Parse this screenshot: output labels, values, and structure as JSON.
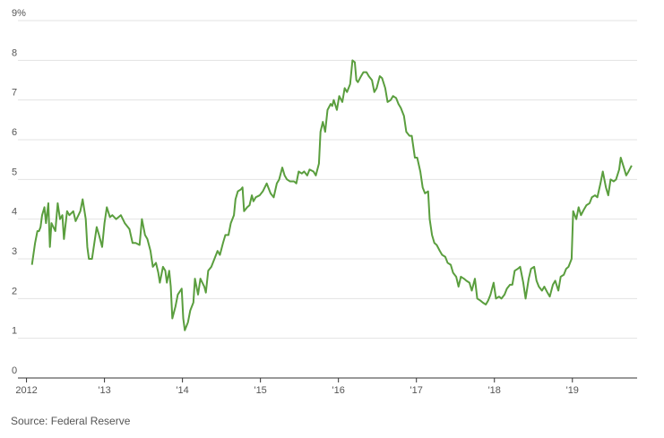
{
  "chart_data": {
    "type": "line",
    "source": "Source: Federal Reserve",
    "x": [
      2012.07,
      2012.11,
      2012.14,
      2012.16,
      2012.18,
      2012.2,
      2012.23,
      2012.25,
      2012.28,
      2012.3,
      2012.32,
      2012.37,
      2012.4,
      2012.43,
      2012.46,
      2012.48,
      2012.52,
      2012.55,
      2012.6,
      2012.63,
      2012.69,
      2012.72,
      2012.76,
      2012.78,
      2012.8,
      2012.84,
      2012.87,
      2012.9,
      2012.93,
      2012.97,
      2013.0,
      2013.03,
      2013.07,
      2013.1,
      2013.15,
      2013.21,
      2013.26,
      2013.32,
      2013.36,
      2013.4,
      2013.45,
      2013.48,
      2013.52,
      2013.55,
      2013.59,
      2013.62,
      2013.66,
      2013.69,
      2013.71,
      2013.75,
      2013.78,
      2013.8,
      2013.83,
      2013.85,
      2013.87,
      2013.91,
      2013.94,
      2013.99,
      2014.01,
      2014.03,
      2014.07,
      2014.1,
      2014.14,
      2014.16,
      2014.2,
      2014.23,
      2014.28,
      2014.3,
      2014.33,
      2014.37,
      2014.41,
      2014.45,
      2014.48,
      2014.52,
      2014.55,
      2014.59,
      2014.62,
      2014.66,
      2014.68,
      2014.71,
      2014.75,
      2014.77,
      2014.79,
      2014.83,
      2014.86,
      2014.89,
      2014.91,
      2014.94,
      2014.99,
      2015.03,
      2015.08,
      2015.13,
      2015.17,
      2015.21,
      2015.24,
      2015.28,
      2015.31,
      2015.34,
      2015.38,
      2015.43,
      2015.46,
      2015.49,
      2015.53,
      2015.56,
      2015.6,
      2015.63,
      2015.68,
      2015.71,
      2015.75,
      2015.77,
      2015.8,
      2015.83,
      2015.86,
      2015.9,
      2015.92,
      2015.94,
      2015.98,
      2016.01,
      2016.05,
      2016.08,
      2016.11,
      2016.15,
      2016.18,
      2016.21,
      2016.23,
      2016.25,
      2016.29,
      2016.32,
      2016.36,
      2016.39,
      2016.43,
      2016.46,
      2016.49,
      2016.53,
      2016.56,
      2016.6,
      2016.63,
      2016.67,
      2016.7,
      2016.74,
      2016.77,
      2016.8,
      2016.84,
      2016.87,
      2016.91,
      2016.94,
      2016.98,
      2017.01,
      2017.05,
      2017.08,
      2017.11,
      2017.15,
      2017.17,
      2017.2,
      2017.23,
      2017.26,
      2017.3,
      2017.33,
      2017.37,
      2017.4,
      2017.44,
      2017.47,
      2017.51,
      2017.54,
      2017.57,
      2017.61,
      2017.64,
      2017.68,
      2017.71,
      2017.75,
      2017.78,
      2017.82,
      2017.85,
      2017.89,
      2017.92,
      2017.95,
      2017.99,
      2018.02,
      2018.06,
      2018.09,
      2018.13,
      2018.16,
      2018.2,
      2018.23,
      2018.26,
      2018.3,
      2018.33,
      2018.37,
      2018.4,
      2018.44,
      2018.47,
      2018.51,
      2018.54,
      2018.57,
      2018.61,
      2018.64,
      2018.68,
      2018.71,
      2018.75,
      2018.78,
      2018.82,
      2018.85,
      2018.89,
      2018.92,
      2018.95,
      2018.99,
      2019.01,
      2019.05,
      2019.08,
      2019.11,
      2019.15,
      2019.18,
      2019.22,
      2019.25,
      2019.29,
      2019.32,
      2019.36,
      2019.39,
      2019.43,
      2019.46,
      2019.49,
      2019.53,
      2019.56,
      2019.6,
      2019.62,
      2019.66,
      2019.69,
      2019.72,
      2019.76
    ],
    "series": [
      {
        "color": "#5a9e3e",
        "values": [
          2.85,
          3.4,
          3.7,
          3.7,
          3.8,
          4.1,
          4.3,
          3.9,
          4.4,
          3.3,
          3.9,
          3.7,
          4.4,
          4.0,
          4.1,
          3.5,
          4.2,
          4.1,
          4.2,
          3.95,
          4.2,
          4.5,
          4.0,
          3.3,
          3.0,
          3.0,
          3.4,
          3.8,
          3.6,
          3.3,
          3.9,
          4.3,
          4.05,
          4.1,
          4.0,
          4.1,
          3.9,
          3.75,
          3.4,
          3.4,
          3.35,
          4.0,
          3.6,
          3.5,
          3.2,
          2.8,
          2.9,
          2.65,
          2.4,
          2.8,
          2.7,
          2.4,
          2.7,
          2.3,
          1.5,
          1.8,
          2.1,
          2.25,
          1.5,
          1.2,
          1.4,
          1.7,
          1.9,
          2.5,
          2.1,
          2.5,
          2.3,
          2.15,
          2.7,
          2.8,
          3.0,
          3.2,
          3.1,
          3.4,
          3.6,
          3.6,
          3.9,
          4.1,
          4.5,
          4.7,
          4.75,
          4.8,
          4.2,
          4.3,
          4.35,
          4.6,
          4.45,
          4.55,
          4.6,
          4.7,
          4.9,
          4.65,
          4.55,
          4.9,
          5.0,
          5.3,
          5.1,
          5.0,
          4.95,
          4.95,
          4.9,
          5.2,
          5.15,
          5.2,
          5.1,
          5.25,
          5.2,
          5.1,
          5.4,
          6.2,
          6.45,
          6.2,
          6.75,
          6.9,
          6.85,
          7.0,
          6.75,
          7.1,
          6.95,
          7.3,
          7.2,
          7.4,
          8.0,
          7.95,
          7.5,
          7.45,
          7.6,
          7.7,
          7.7,
          7.6,
          7.5,
          7.2,
          7.3,
          7.6,
          7.55,
          7.3,
          6.95,
          7.0,
          7.1,
          7.05,
          6.9,
          6.8,
          6.6,
          6.2,
          6.1,
          6.1,
          5.55,
          5.55,
          5.2,
          4.8,
          4.65,
          4.7,
          4.0,
          3.6,
          3.4,
          3.35,
          3.2,
          3.1,
          3.05,
          2.9,
          2.85,
          2.65,
          2.55,
          2.3,
          2.55,
          2.5,
          2.45,
          2.4,
          2.2,
          2.5,
          2.0,
          1.95,
          1.9,
          1.85,
          1.95,
          2.1,
          2.4,
          2.0,
          2.05,
          2.0,
          2.1,
          2.25,
          2.35,
          2.35,
          2.7,
          2.75,
          2.8,
          2.4,
          2.0,
          2.5,
          2.75,
          2.8,
          2.45,
          2.3,
          2.2,
          2.3,
          2.15,
          2.05,
          2.35,
          2.45,
          2.2,
          2.55,
          2.6,
          2.75,
          2.8,
          3.0,
          4.2,
          4.0,
          4.3,
          4.1,
          4.25,
          4.35,
          4.4,
          4.55,
          4.6,
          4.55,
          4.9,
          5.2,
          4.8,
          4.6,
          5.0,
          4.95,
          5.0,
          5.25,
          5.55,
          5.3,
          5.1,
          5.2,
          5.35
        ]
      }
    ],
    "xlim": [
      2011.89,
      2019.83
    ],
    "xticks": [
      2012,
      {
        "value": 2013,
        "label": "'13"
      },
      {
        "value": 2014,
        "label": "'14"
      },
      {
        "value": 2015,
        "label": "'15"
      },
      {
        "value": 2016,
        "label": "'16"
      },
      {
        "value": 2017,
        "label": "'17"
      },
      {
        "value": 2018,
        "label": "'18"
      },
      {
        "value": 2019,
        "label": "'19"
      }
    ],
    "ylim": [
      0,
      9
    ],
    "yticks": [
      0,
      1,
      2,
      3,
      4,
      5,
      6,
      7,
      8,
      {
        "value": 9,
        "label": "9%"
      }
    ],
    "grid": true
  }
}
